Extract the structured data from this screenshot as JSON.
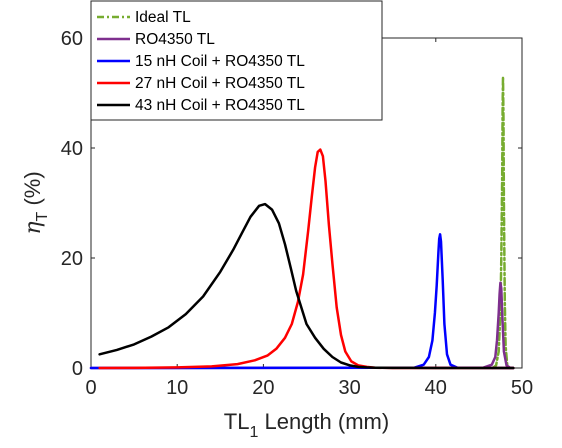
{
  "chart_data": {
    "type": "line",
    "title": "",
    "xlabel": {
      "main": "TL",
      "sub": "1",
      "rest": " Length (mm)"
    },
    "ylabel": {
      "main": "η",
      "sub": "T",
      "rest": " (%)"
    },
    "xlim": [
      0,
      50
    ],
    "ylim": [
      0,
      60
    ],
    "xticks": [
      0,
      10,
      20,
      30,
      40,
      50
    ],
    "yticks": [
      0,
      20,
      40,
      60
    ],
    "grid": false,
    "legend_position": "top-left",
    "series": [
      {
        "name": "Ideal TL",
        "color": "#77AC30",
        "dash": "dash-dot",
        "x": [
          46.6,
          47.0,
          47.3,
          47.5,
          47.6,
          47.7,
          47.75,
          47.8,
          47.85,
          47.9,
          48.0,
          48.1,
          48.3,
          48.6
        ],
        "y": [
          0,
          0.5,
          3,
          10,
          20,
          35,
          47,
          53,
          45,
          30,
          12,
          4,
          0.5,
          0
        ]
      },
      {
        "name": "RO4350 TL",
        "color": "#7E2F8E",
        "dash": "solid",
        "x": [
          0,
          45.5,
          46.5,
          46.9,
          47.1,
          47.3,
          47.4,
          47.5,
          47.6,
          47.7,
          47.9,
          48.2,
          48.6,
          49.0
        ],
        "y": [
          0,
          0.05,
          0.6,
          2,
          5,
          10,
          13.5,
          15.5,
          14.5,
          10,
          3,
          0.5,
          0.05,
          0
        ]
      },
      {
        "name": "15 nH Coil + RO4350 TL",
        "color": "#0000FF",
        "dash": "solid",
        "x": [
          0,
          37.5,
          38.6,
          39.2,
          39.6,
          39.9,
          40.1,
          40.3,
          40.4,
          40.5,
          40.6,
          40.8,
          41.0,
          41.3,
          41.7,
          42.5,
          49.0
        ],
        "y": [
          0,
          0.05,
          0.6,
          2,
          5,
          10,
          15,
          21,
          23.5,
          24.3,
          23,
          16,
          8,
          2.5,
          0.6,
          0.05,
          0
        ]
      },
      {
        "name": "27 nH Coil + RO4350 TL",
        "color": "#FF0000",
        "dash": "solid",
        "x": [
          1,
          5,
          10,
          14,
          17,
          19,
          20.5,
          21.5,
          22.5,
          23.3,
          24,
          24.6,
          25.2,
          25.6,
          26.0,
          26.3,
          26.6,
          26.9,
          27.2,
          27.6,
          28.0,
          28.5,
          29.0,
          29.5,
          30.2,
          31,
          32,
          33,
          35,
          49
        ],
        "y": [
          0,
          0.02,
          0.1,
          0.3,
          0.7,
          1.4,
          2.3,
          3.5,
          5.5,
          8,
          12,
          17,
          25,
          31,
          36.5,
          39.3,
          39.7,
          38.5,
          34,
          26,
          19,
          11,
          6,
          3,
          1.2,
          0.5,
          0.2,
          0.05,
          0,
          0
        ]
      },
      {
        "name": "43 nH Coil + RO4350 TL",
        "color": "#000000",
        "dash": "solid",
        "x": [
          1,
          3,
          5,
          7,
          9,
          11,
          13,
          15,
          16.5,
          17.5,
          18.5,
          19.5,
          20.2,
          21,
          21.8,
          22.5,
          23.2,
          23.8,
          24.5,
          25,
          26,
          27,
          28,
          29,
          30,
          31,
          32,
          33,
          35,
          37,
          40,
          49
        ],
        "y": [
          2.5,
          3.3,
          4.3,
          5.7,
          7.4,
          9.8,
          13,
          17.5,
          21.5,
          24.5,
          27.5,
          29.5,
          29.8,
          28.8,
          26.3,
          22.5,
          18,
          14,
          10.5,
          8,
          5.5,
          3.5,
          2,
          1,
          0.5,
          0.2,
          0.1,
          0.05,
          0.02,
          0.01,
          0,
          0
        ]
      }
    ]
  }
}
